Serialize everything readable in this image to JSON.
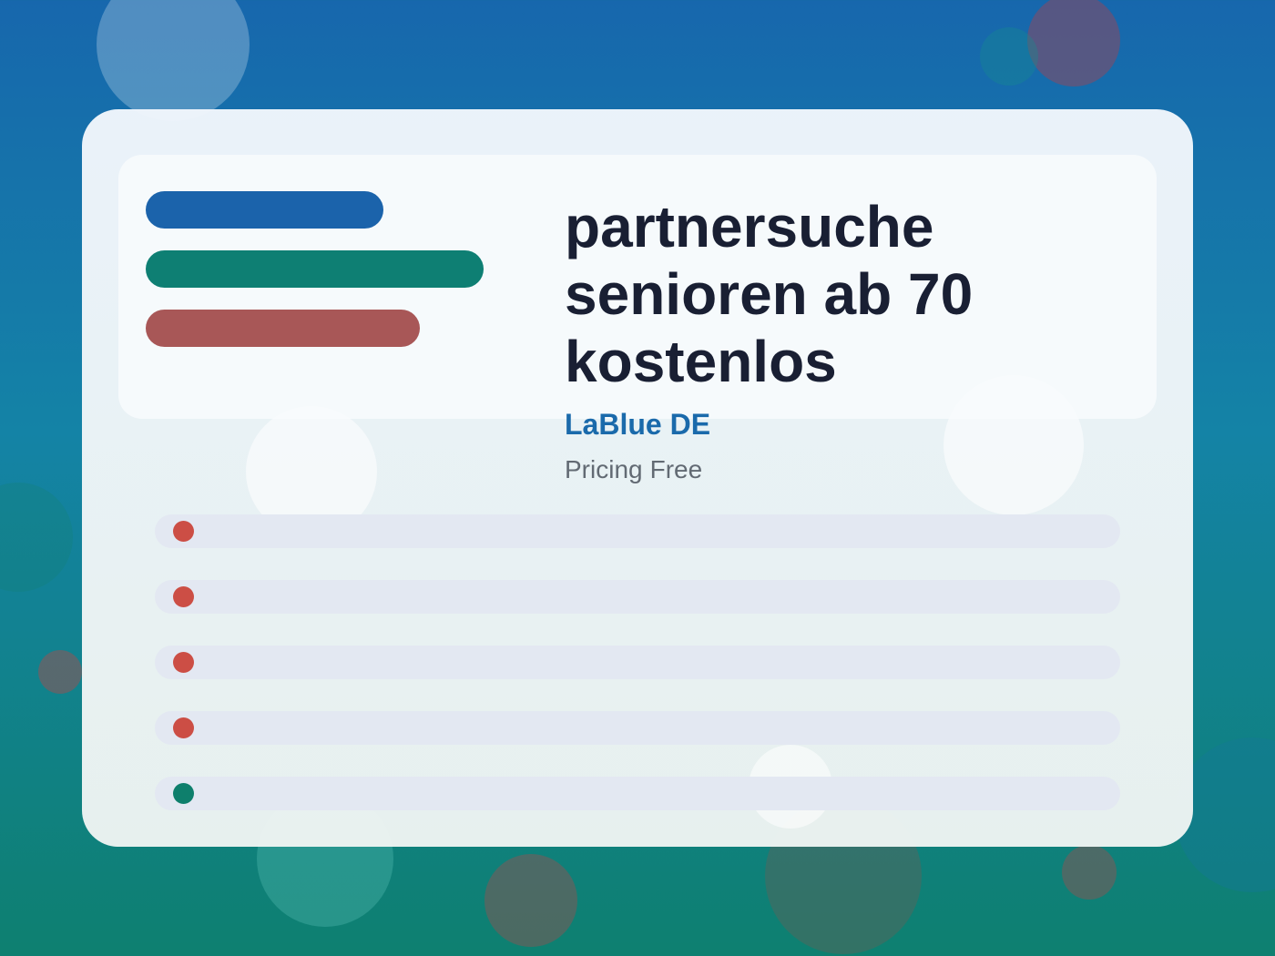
{
  "title": "partnersuche senioren ab 70 kostenlos",
  "brand": "LaBlue DE",
  "pricing": {
    "label": "Pricing",
    "value": "Free"
  },
  "colors": {
    "pill_blue": "#1b63ab",
    "pill_green": "#0e7f73",
    "pill_red": "#a85757",
    "dot_red": "#cc4e45",
    "dot_green": "#0e7f6c"
  },
  "rows": [
    {
      "dot_color": "#cc4e45"
    },
    {
      "dot_color": "#cc4e45"
    },
    {
      "dot_color": "#cc4e45"
    },
    {
      "dot_color": "#cc4e45"
    },
    {
      "dot_color": "#0e7f6c"
    }
  ]
}
